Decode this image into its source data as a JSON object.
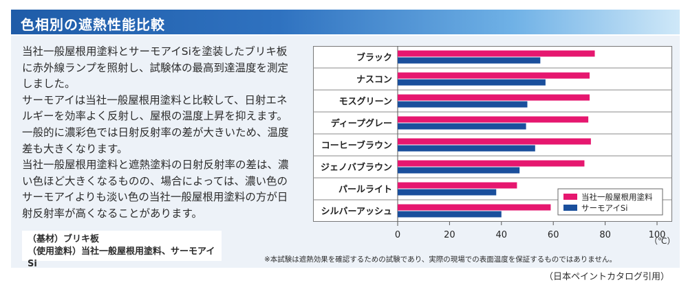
{
  "header": {
    "title": "色相別の遮熱性能比較"
  },
  "description": {
    "p1": "当社一般屋根用塗料とサーモアイSiを塗装したブリキ板に赤外線ランプを照射し、試験体の最高到達温度を測定しました。",
    "p2": "サーモアイは当社一般屋根用塗料と比較して、日射エネルギーを効率よく反射し、屋根の温度上昇を抑えます。一般的に濃彩色では日射反射率の差が大きいため、温度差も大きくなります。",
    "p3": "当社一般屋根用塗料と遮熱塗料の日射反射率の差は、濃い色ほど大きくなるものの、場合によっては、濃い色のサーモアイよりも淡い色の当社一般屋根用塗料の方が日射反射率が高くなることがあります。"
  },
  "base_info": {
    "substrate": "（基材）ブリキ板",
    "paint": "（使用塗料）当社一般屋根用塗料、サーモアイSi"
  },
  "chart_data": {
    "type": "bar",
    "orientation": "horizontal",
    "categories": [
      "ブラック",
      "ナスコン",
      "モスグリーン",
      "ディープグレー",
      "コーヒーブラウン",
      "ジェノバブラウン",
      "パールライト",
      "シルバーアッシュ"
    ],
    "series": [
      {
        "name": "当社一般屋根用塗料",
        "color": "#e6176f",
        "values": [
          76,
          74,
          74,
          73.5,
          74.5,
          72,
          46,
          59
        ]
      },
      {
        "name": "サーモアイSi",
        "color": "#1a4f9c",
        "values": [
          55,
          57,
          50,
          49.5,
          53,
          47,
          38,
          40
        ]
      }
    ],
    "xticks": [
      0,
      20,
      40,
      60,
      80,
      100
    ],
    "xlim": [
      0,
      100
    ],
    "unit": "（℃）",
    "legend_position": "bottom-right"
  },
  "disclaimer": "※本試験は遮熱効果を確認するための試験であり、実際の現場での表面温度を保証するものではありません。",
  "source": "（日本ペイントカタログ引用）"
}
